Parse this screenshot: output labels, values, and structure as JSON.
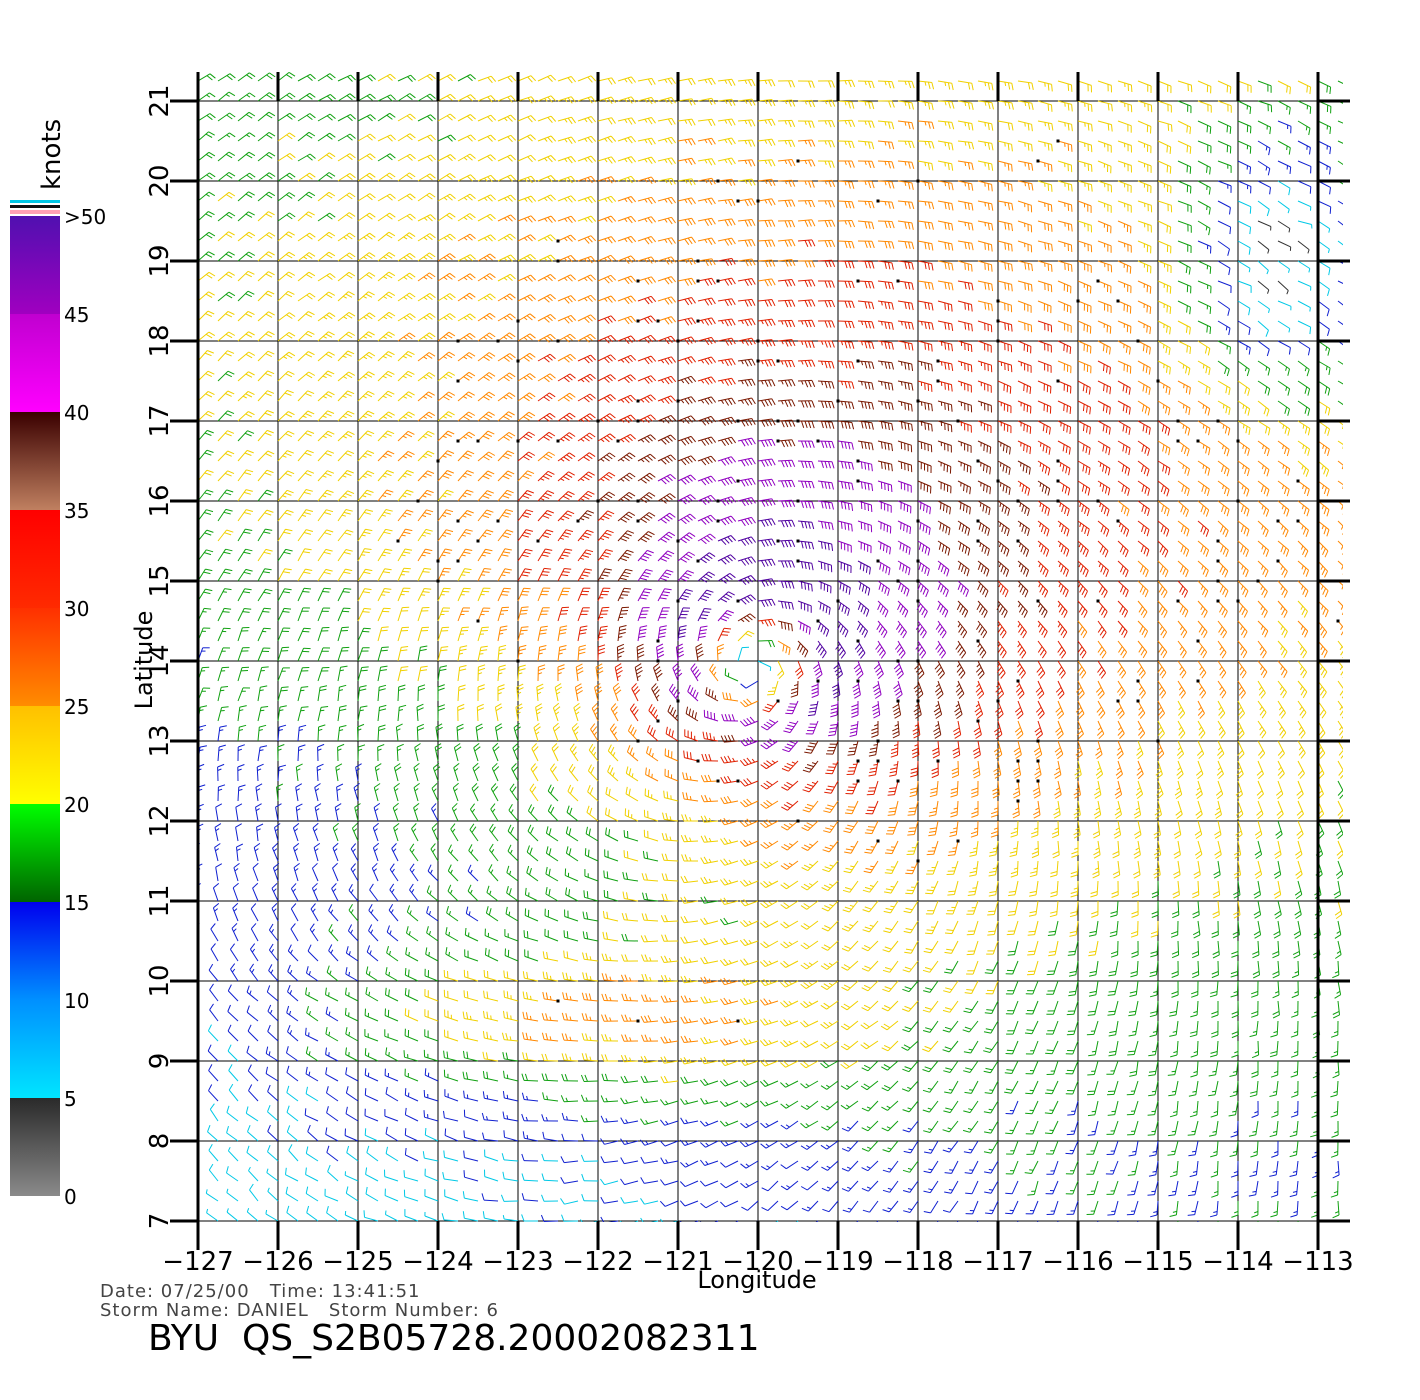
{
  "chart_data": {
    "type": "wind-barb",
    "xlabel": "Longitude",
    "ylabel": "Latitude",
    "xlim": [
      -127,
      -112.6
    ],
    "ylim": [
      7,
      21.3
    ],
    "x_ticks": [
      "-127",
      "-126",
      "-125",
      "-124",
      "-123",
      "-122",
      "-121",
      "-120",
      "-119",
      "-118",
      "-117",
      "-116",
      "-115",
      "-114",
      "-113"
    ],
    "y_ticks": [
      "7",
      "8",
      "9",
      "10",
      "11",
      "12",
      "13",
      "14",
      "15",
      "16",
      "17",
      "18",
      "19",
      "20",
      "21"
    ],
    "grid": true,
    "storm_center": {
      "lon": -120.0,
      "lat": 14.1
    },
    "colorbar": {
      "title": "knots",
      "tick_labels": [
        "0",
        "5",
        "10",
        "15",
        "20",
        "25",
        "30",
        "35",
        "40",
        "45",
        ">50"
      ],
      "bands": [
        {
          "from": 0,
          "to": 5,
          "colors": [
            "#8a8a8a",
            "#2a2a2a"
          ]
        },
        {
          "from": 5,
          "to": 10,
          "colors": [
            "#00e5ff",
            "#0090ff"
          ]
        },
        {
          "from": 10,
          "to": 15,
          "colors": [
            "#0090ff",
            "#0000ee"
          ]
        },
        {
          "from": 15,
          "to": 20,
          "colors": [
            "#006400",
            "#00ff00"
          ]
        },
        {
          "from": 20,
          "to": 25,
          "colors": [
            "#ffff00",
            "#ffc000"
          ]
        },
        {
          "from": 25,
          "to": 30,
          "colors": [
            "#ff8c00",
            "#ff3000"
          ]
        },
        {
          "from": 30,
          "to": 35,
          "colors": [
            "#ff2a00",
            "#ff0000"
          ]
        },
        {
          "from": 35,
          "to": 40,
          "colors": [
            "#c08060",
            "#3a0000"
          ]
        },
        {
          "from": 40,
          "to": 45,
          "colors": [
            "#ff00ff",
            "#c000d0"
          ]
        },
        {
          "from": 45,
          "to": 50,
          "colors": [
            "#a000c0",
            "#5010b0"
          ]
        }
      ]
    },
    "speed_colors": [
      {
        "max": 5,
        "color": "#333333"
      },
      {
        "max": 10,
        "color": "#00c8e6"
      },
      {
        "max": 15,
        "color": "#1020d0"
      },
      {
        "max": 20,
        "color": "#10a010"
      },
      {
        "max": 25,
        "color": "#f0d000"
      },
      {
        "max": 30,
        "color": "#ff8800"
      },
      {
        "max": 35,
        "color": "#e02000"
      },
      {
        "max": 40,
        "color": "#7a1800"
      },
      {
        "max": 50,
        "color": "#9000c0"
      },
      {
        "max": 999,
        "color": "#5000a0"
      }
    ]
  },
  "meta": {
    "line1": "Date: 07/25/00   Time: 13:41:51",
    "line2": "Storm Name: DANIEL   Storm Number: 6",
    "title": "BYU  QS_S2B05728.20002082311"
  }
}
